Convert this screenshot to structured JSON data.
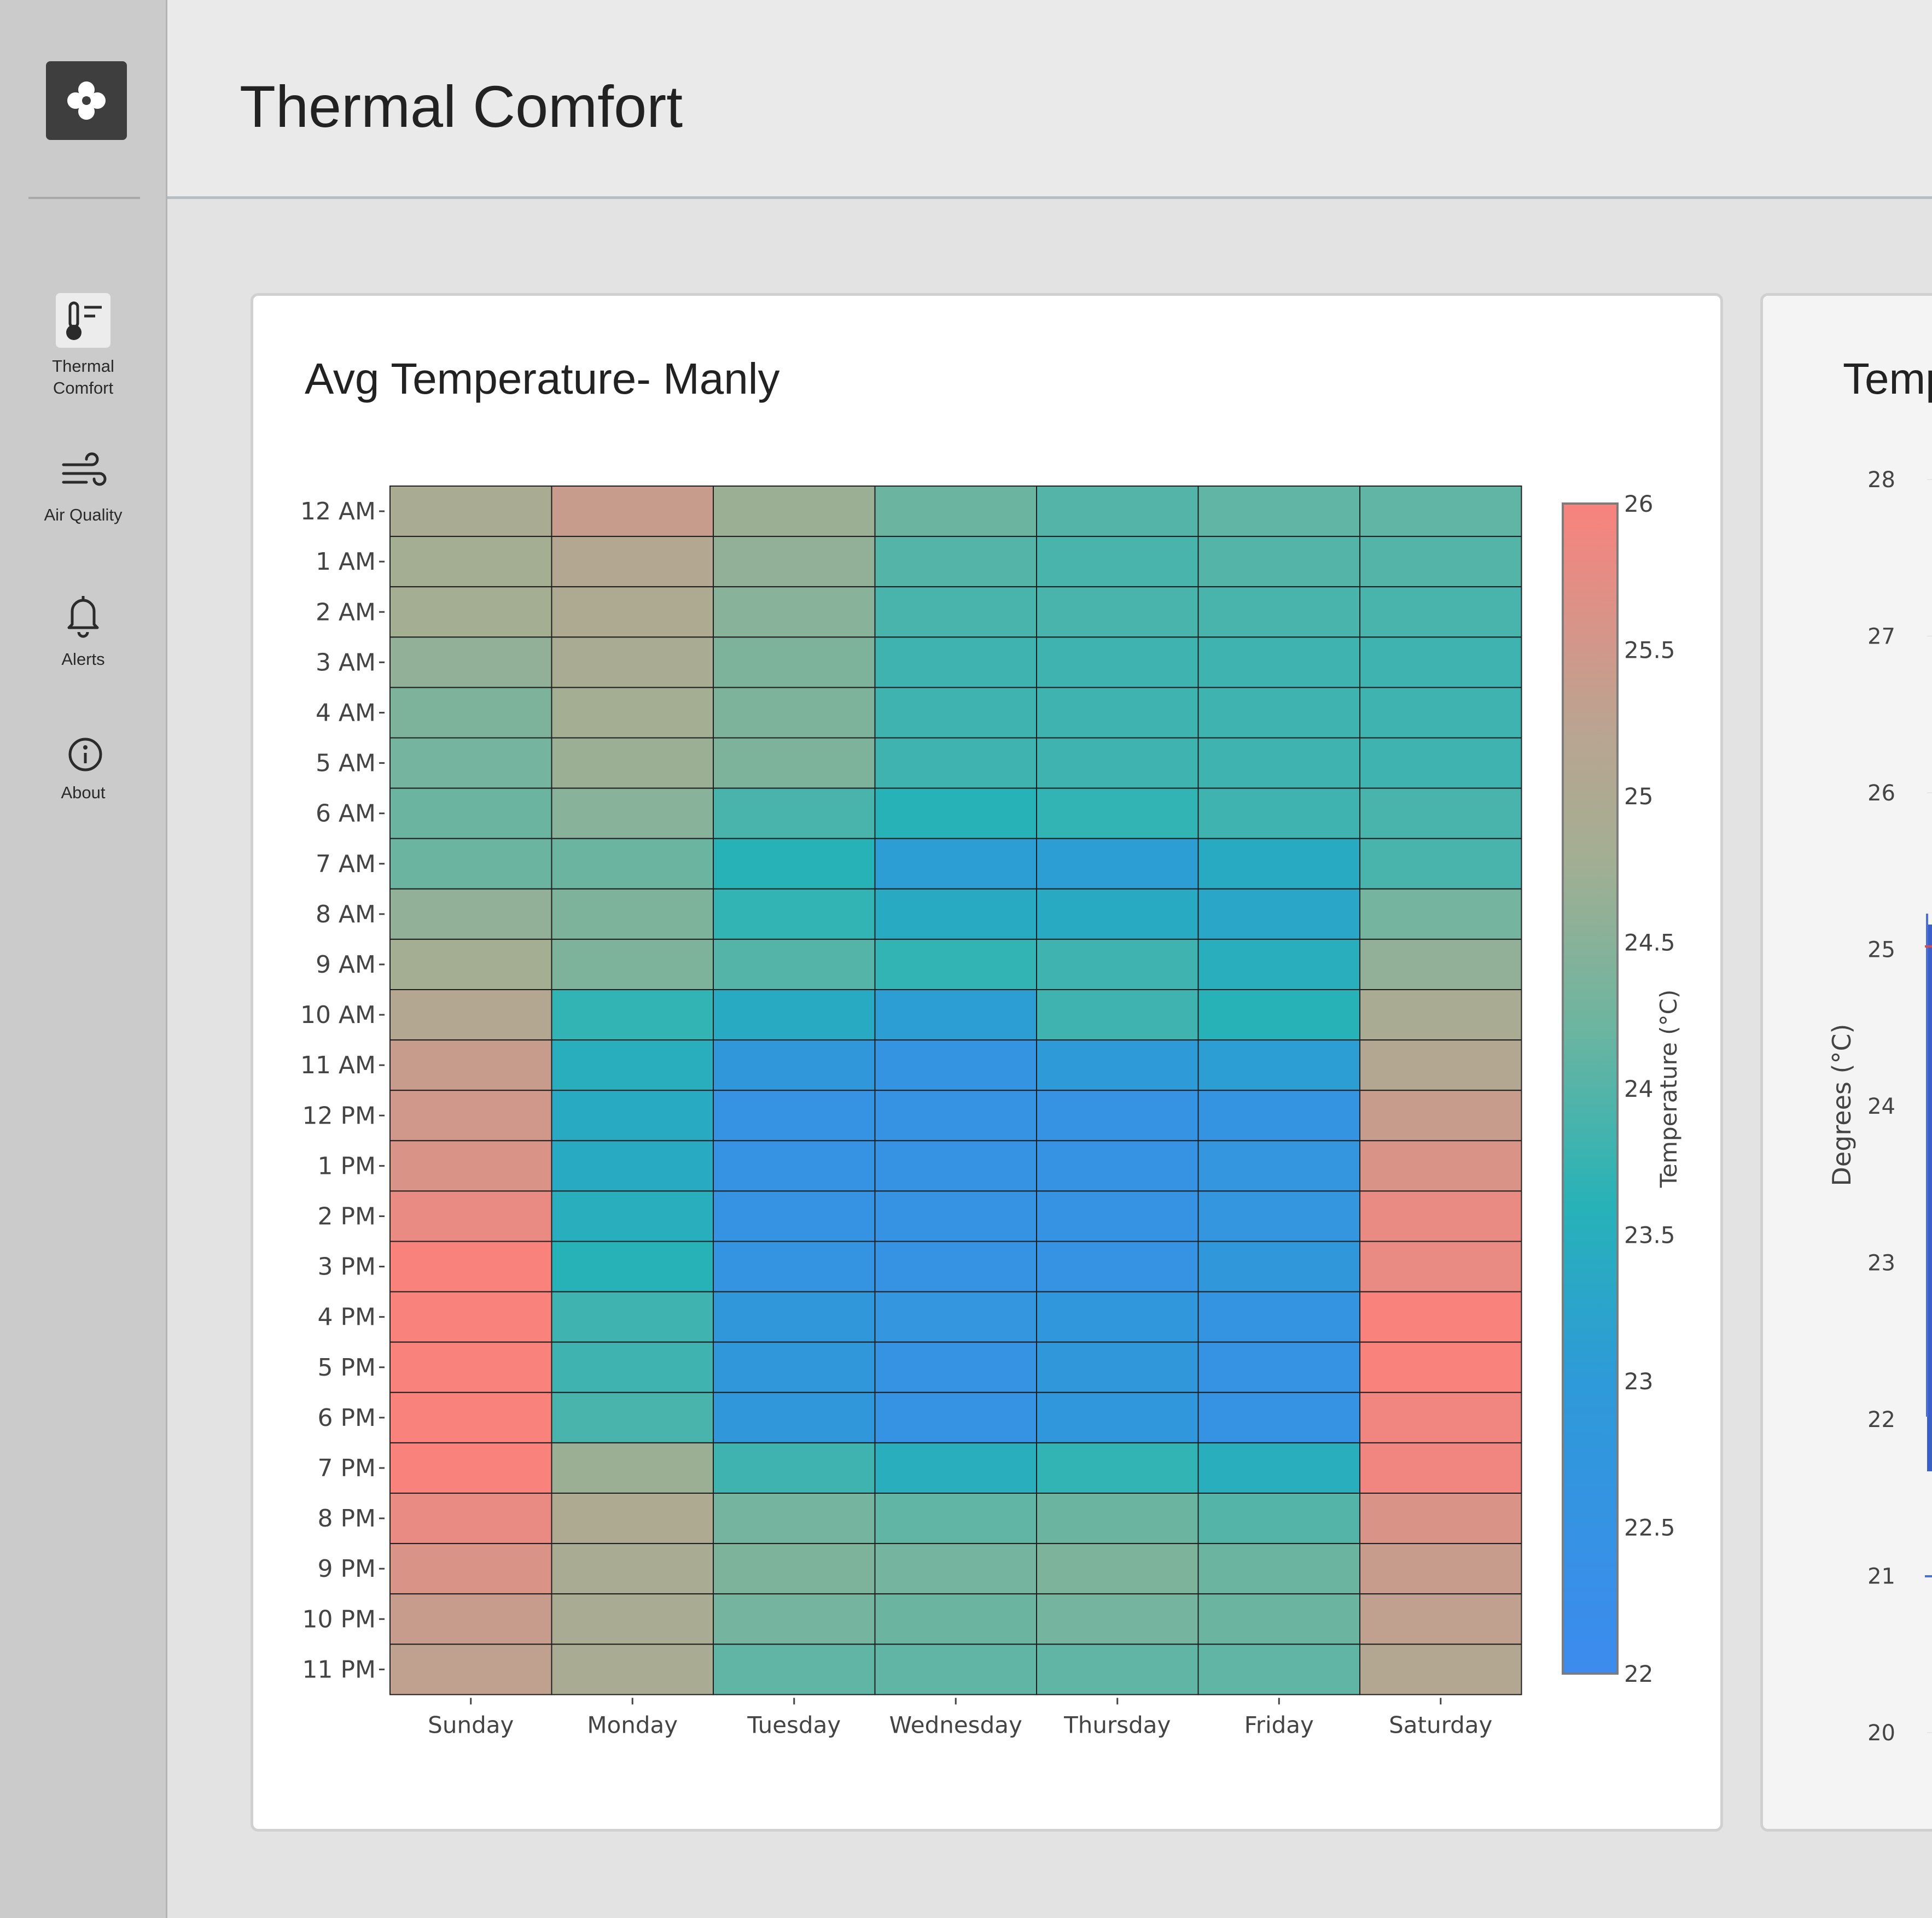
{
  "app": {
    "title": "Thermal Comfort"
  },
  "sidebar": {
    "logo_icon": "flower-icon",
    "items": [
      {
        "label_line1": "Thermal",
        "label_line2": "Comfort",
        "icon": "thermometer-icon",
        "active": true
      },
      {
        "label": "Air Quality",
        "icon": "wind-icon",
        "active": false
      },
      {
        "label": "Alerts",
        "icon": "bell-icon",
        "active": false
      },
      {
        "label": "About",
        "icon": "info-icon",
        "active": false
      }
    ]
  },
  "cards": [
    {
      "title": "Avg Temperature- Manly"
    },
    {
      "title": "Temp"
    }
  ],
  "chart_data": [
    {
      "type": "heatmap",
      "title": "Avg Temperature- Manly",
      "x": [
        "Sunday",
        "Monday",
        "Tuesday",
        "Wednesday",
        "Thursday",
        "Friday",
        "Saturday"
      ],
      "y": [
        "12 AM",
        "1 AM",
        "2 AM",
        "3 AM",
        "4 AM",
        "5 AM",
        "6 AM",
        "7 AM",
        "8 AM",
        "9 AM",
        "10 AM",
        "11 AM",
        "12 PM",
        "1 PM",
        "2 PM",
        "3 PM",
        "4 PM",
        "5 PM",
        "6 PM",
        "7 PM",
        "8 PM",
        "9 PM",
        "10 PM",
        "11 PM"
      ],
      "z": [
        [
          24.9,
          25.4,
          24.7,
          24.2,
          24.0,
          24.1,
          24.1
        ],
        [
          24.8,
          25.1,
          24.6,
          24.0,
          23.9,
          24.0,
          24.0
        ],
        [
          24.8,
          25.0,
          24.5,
          23.9,
          23.9,
          23.9,
          23.9
        ],
        [
          24.6,
          24.9,
          24.4,
          23.8,
          23.8,
          23.8,
          23.8
        ],
        [
          24.4,
          24.8,
          24.4,
          23.8,
          23.8,
          23.8,
          23.8
        ],
        [
          24.3,
          24.7,
          24.4,
          23.8,
          23.8,
          23.8,
          23.8
        ],
        [
          24.2,
          24.5,
          23.9,
          23.6,
          23.7,
          23.8,
          23.9
        ],
        [
          24.2,
          24.2,
          23.6,
          23.1,
          23.1,
          23.4,
          23.9
        ],
        [
          24.6,
          24.4,
          23.7,
          23.4,
          23.4,
          23.3,
          24.3
        ],
        [
          24.8,
          24.4,
          24.0,
          23.7,
          23.8,
          23.5,
          24.6
        ],
        [
          25.1,
          23.7,
          23.4,
          23.1,
          23.8,
          23.6,
          24.9
        ],
        [
          25.4,
          23.5,
          22.9,
          22.6,
          23.0,
          23.1,
          25.1
        ],
        [
          25.5,
          23.4,
          22.5,
          22.5,
          22.5,
          22.6,
          25.4
        ],
        [
          25.6,
          23.4,
          22.5,
          22.5,
          22.5,
          22.7,
          25.6
        ],
        [
          25.8,
          23.5,
          22.5,
          22.5,
          22.5,
          22.7,
          25.8
        ],
        [
          26.0,
          23.6,
          22.6,
          22.5,
          22.5,
          22.9,
          25.8
        ],
        [
          26.0,
          23.8,
          22.9,
          22.7,
          22.8,
          22.6,
          26.0
        ],
        [
          26.0,
          23.8,
          22.9,
          22.5,
          22.9,
          22.5,
          26.0
        ],
        [
          26.0,
          23.9,
          22.9,
          22.5,
          22.8,
          22.5,
          25.9
        ],
        [
          26.0,
          24.7,
          23.8,
          23.5,
          23.7,
          23.5,
          25.9
        ],
        [
          25.8,
          25.0,
          24.3,
          24.1,
          24.2,
          24.0,
          25.6
        ],
        [
          25.6,
          24.9,
          24.4,
          24.3,
          24.4,
          24.2,
          25.4
        ],
        [
          25.4,
          24.9,
          24.3,
          24.2,
          24.3,
          24.2,
          25.3
        ],
        [
          25.3,
          24.9,
          24.1,
          24.1,
          24.1,
          24.1,
          25.1
        ]
      ],
      "colorbar": {
        "title": "Temperature (°C)",
        "min": 22,
        "max": 26,
        "ticks": [
          22,
          22.5,
          23,
          23.5,
          24,
          24.5,
          25,
          25.5,
          26
        ]
      },
      "colors": {
        "low": "#3d8bef",
        "mid": "#27b2b8",
        "high": "#f9827d"
      }
    },
    {
      "type": "line",
      "title": "Temp",
      "ylabel": "Degrees (°C)",
      "yticks": [
        28,
        27,
        26,
        25,
        24,
        23,
        22,
        21,
        20
      ]
    }
  ]
}
